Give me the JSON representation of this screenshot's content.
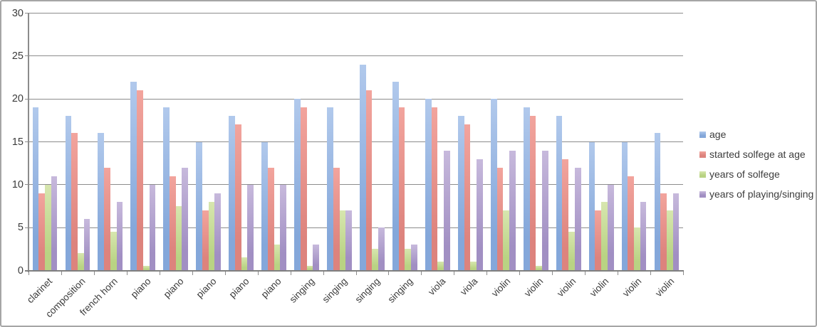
{
  "chart_data": {
    "type": "bar",
    "categories": [
      "clarinet",
      "composition",
      "french horn",
      "piano",
      "piano",
      "piano",
      "piano",
      "piano",
      "singing",
      "singing",
      "singing",
      "singing",
      "viola",
      "viola",
      "violin",
      "violin",
      "violin",
      "violin",
      "violin",
      "violin"
    ],
    "series": [
      {
        "name": "age",
        "color": "#84A7DA",
        "color_light": "#B1C9EC",
        "values": [
          19,
          18,
          16,
          22,
          19,
          15,
          18,
          15,
          20,
          19,
          24,
          22,
          20,
          18,
          20,
          19,
          18,
          15,
          15,
          16
        ]
      },
      {
        "name": "started solfege at age",
        "color": "#DD837D",
        "color_light": "#F2A49D",
        "values": [
          9,
          16,
          12,
          21,
          11,
          7,
          17,
          12,
          19,
          12,
          21,
          19,
          19,
          17,
          12,
          18,
          13,
          7,
          11,
          9
        ]
      },
      {
        "name": "years of solfege",
        "color": "#B9D383",
        "color_light": "#D7E6AF",
        "values": [
          10,
          2,
          4.5,
          0.5,
          7.5,
          8,
          1.5,
          3,
          0.5,
          7,
          2.5,
          2.5,
          1,
          1,
          7,
          0.5,
          4.5,
          8,
          5,
          7
        ]
      },
      {
        "name": "years of playing/singing",
        "color": "#A18FC3",
        "color_light": "#C7B9DC",
        "values": [
          11,
          6,
          8,
          10,
          12,
          9,
          10,
          10,
          3,
          7,
          5,
          3,
          14,
          13,
          14,
          14,
          12,
          10,
          8,
          9
        ]
      }
    ],
    "ylim": [
      0,
      30
    ],
    "yticks": [
      0,
      5,
      10,
      15,
      20,
      25,
      30
    ],
    "grid": true,
    "legend_position": "right",
    "style": {
      "grid_color": "#8C8C8C",
      "axis_color": "#7F7F7F",
      "text_color": "#3C3C3C",
      "border_color": "#A6A6A6",
      "background": "#FFFFFF"
    }
  }
}
